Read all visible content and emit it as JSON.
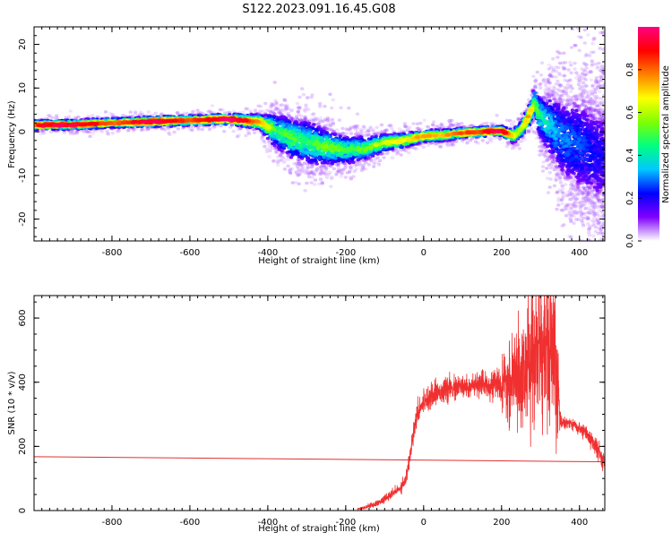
{
  "title": "S122.2023.091.16.45.G08",
  "chart_data": [
    {
      "type": "heatmap",
      "xlabel": "Height of straight line (km)",
      "ylabel": "Frequency (Hz)",
      "xlim": [
        -1000,
        465
      ],
      "ylim": [
        -25,
        24
      ],
      "xticks": [
        -800,
        -600,
        -400,
        -200,
        0,
        200,
        400
      ],
      "yticks": [
        -20,
        -10,
        0,
        10,
        20
      ],
      "colorbar": {
        "label": "Normalized spectral amplitude",
        "range": [
          0,
          1
        ],
        "ticks": [
          0.0,
          0.2,
          0.4,
          0.6,
          0.8
        ],
        "colormap": [
          "#ffffff",
          "#8000ff",
          "#0000ff",
          "#00c8ff",
          "#00ff80",
          "#80ff00",
          "#ffff00",
          "#ff8000",
          "#ff0000",
          "#ff0080"
        ]
      },
      "ridge": {
        "x": [
          -1000,
          -900,
          -800,
          -700,
          -600,
          -500,
          -420,
          -380,
          -340,
          -300,
          -250,
          -200,
          -150,
          -100,
          -50,
          0,
          50,
          100,
          150,
          200,
          230,
          250,
          270,
          285,
          295,
          310,
          330,
          360,
          400,
          440,
          465
        ],
        "y": [
          1.5,
          1.6,
          2.0,
          2.3,
          2.6,
          2.9,
          2.2,
          0.3,
          -1.5,
          -2.5,
          -3.5,
          -4.2,
          -3.8,
          -2.5,
          -2.0,
          -1.0,
          -0.8,
          -0.3,
          0.0,
          0.2,
          -1.0,
          0.5,
          3.5,
          7.0,
          4.0,
          2.5,
          1.0,
          -2.0,
          -3.0,
          -5.0,
          -6.0
        ],
        "amplitude": [
          0.82,
          0.9,
          0.72,
          0.88,
          0.75,
          0.92,
          0.7,
          0.45,
          0.48,
          0.42,
          0.52,
          0.45,
          0.5,
          0.58,
          0.62,
          0.7,
          0.66,
          0.74,
          0.8,
          0.9,
          0.6,
          0.55,
          0.7,
          0.5,
          0.45,
          0.38,
          0.32,
          0.28,
          0.25,
          0.2,
          0.18
        ],
        "spread": [
          1.5,
          1.5,
          1.6,
          1.6,
          1.7,
          1.6,
          2.5,
          6.0,
          7.0,
          8.0,
          6.0,
          5.0,
          4.0,
          3.0,
          2.5,
          2.0,
          2.0,
          1.8,
          1.6,
          1.5,
          2.5,
          3.0,
          3.5,
          5.0,
          7.0,
          9.0,
          12.0,
          15.0,
          18.0,
          20.0,
          22.0
        ]
      }
    },
    {
      "type": "line",
      "xlabel": "Height of straight line (km)",
      "ylabel": "SNR (10 * v/v)",
      "xlim": [
        -1000,
        465
      ],
      "ylim": [
        0,
        670
      ],
      "xticks": [
        -800,
        -600,
        -400,
        -200,
        0,
        200,
        400
      ],
      "yticks": [
        0,
        200,
        400,
        600
      ],
      "series": [
        {
          "color": "#f03030",
          "noisy": true,
          "x": [
            -170,
            -150,
            -120,
            -100,
            -80,
            -60,
            -45,
            -35,
            -28,
            -20,
            -10,
            0,
            20,
            50,
            100,
            150,
            190,
            200,
            220,
            250,
            280,
            300,
            330,
            342,
            350,
            380,
            420,
            465
          ],
          "y": [
            5,
            10,
            22,
            35,
            52,
            70,
            100,
            170,
            230,
            290,
            320,
            340,
            360,
            375,
            385,
            390,
            395,
            380,
            395,
            430,
            470,
            520,
            480,
            420,
            280,
            270,
            240,
            150
          ],
          "noise": [
            3,
            5,
            8,
            10,
            12,
            15,
            18,
            25,
            30,
            30,
            30,
            30,
            30,
            30,
            30,
            30,
            35,
            60,
            90,
            130,
            180,
            220,
            200,
            160,
            20,
            15,
            20,
            30
          ]
        },
        {
          "color": "#e03030",
          "noisy": false,
          "x": [
            -1000,
            465
          ],
          "y": [
            168,
            152
          ]
        }
      ]
    }
  ]
}
